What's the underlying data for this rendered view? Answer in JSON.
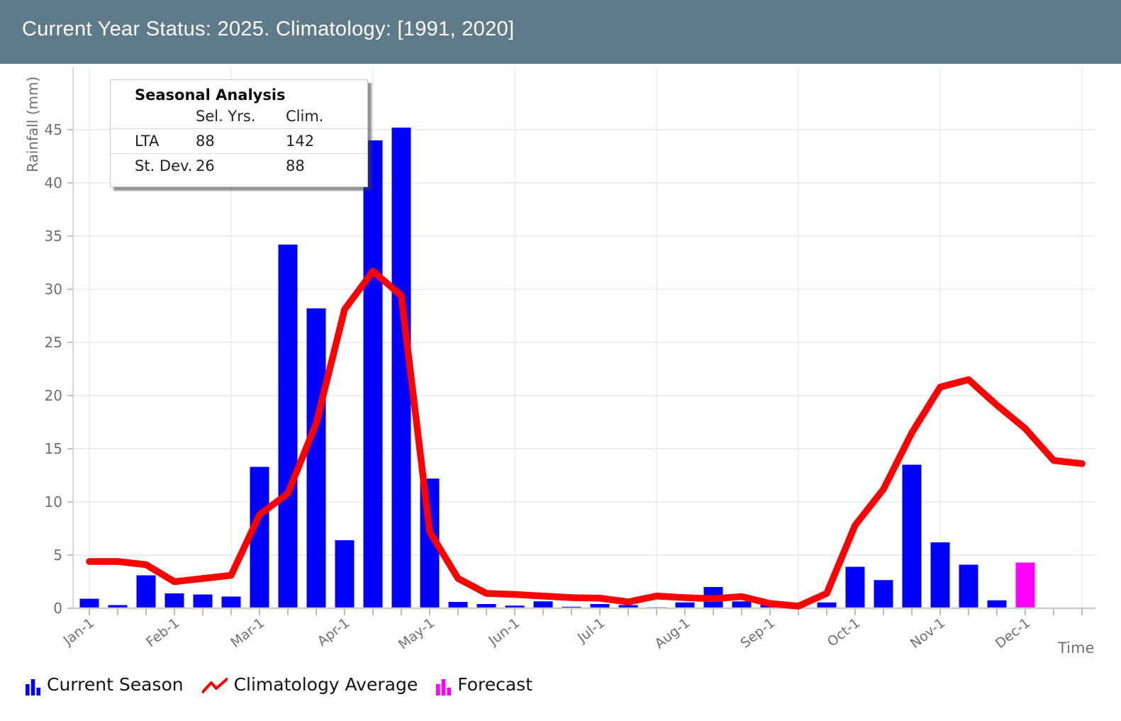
{
  "header": {
    "title": "Current Year Status: 2025. Climatology: [1991, 2020]"
  },
  "tooltip": {
    "title": "Seasonal Analysis",
    "col_headers": [
      "Sel. Yrs.",
      "Clim."
    ],
    "rows": [
      {
        "label": "LTA",
        "sel_yrs": "88",
        "clim": "142"
      },
      {
        "label": "St. Dev.",
        "sel_yrs": "26",
        "clim": "88"
      }
    ]
  },
  "axes": {
    "ylabel": "Rainfall (mm)",
    "xlabel": "Time"
  },
  "legend": {
    "current_season": "Current Season",
    "climatology_average": "Climatology Average",
    "forecast": "Forecast"
  },
  "colors": {
    "header_bg": "#5f7a88",
    "bar": "#0000ff",
    "forecast": "#ff00ff",
    "line": "#ff0000",
    "grid": "#e8e8e8",
    "spine": "#cdcdcd",
    "tick": "#c2c2c2",
    "tick_label": "#6f6f6f"
  },
  "chart_data": {
    "type": "bar",
    "title": "Current Year Status: 2025. Climatology: [1991, 2020]",
    "xlabel": "Time",
    "ylabel": "Rainfall (mm)",
    "ylim": [
      0,
      50
    ],
    "yticks": [
      0,
      5,
      10,
      15,
      20,
      25,
      30,
      35,
      40,
      45
    ],
    "grid": true,
    "legend_position": "bottom",
    "month_tick_labels": [
      "Jan-1",
      "Feb-1",
      "Mar-1",
      "Apr-1",
      "May-1",
      "Jun-1",
      "Jul-1",
      "Aug-1",
      "Sep-1",
      "Oct-1",
      "Nov-1",
      "Dec-1"
    ],
    "categories": [
      "Jan-1",
      "Jan-11",
      "Jan-21",
      "Feb-1",
      "Feb-11",
      "Feb-21",
      "Mar-1",
      "Mar-11",
      "Mar-21",
      "Apr-1",
      "Apr-11",
      "Apr-21",
      "May-1",
      "May-11",
      "May-21",
      "Jun-1",
      "Jun-11",
      "Jun-21",
      "Jul-1",
      "Jul-11",
      "Jul-21",
      "Aug-1",
      "Aug-11",
      "Aug-21",
      "Sep-1",
      "Sep-11",
      "Sep-21",
      "Oct-1",
      "Oct-11",
      "Oct-21",
      "Nov-1",
      "Nov-11",
      "Nov-21",
      "Dec-1",
      "Dec-11",
      "Dec-21"
    ],
    "series": [
      {
        "name": "Current Season",
        "type": "bar",
        "color": "#0000ff",
        "values": [
          0.9,
          0.3,
          3.1,
          1.4,
          1.3,
          1.1,
          13.3,
          34.2,
          28.2,
          6.4,
          44.0,
          45.2,
          12.2,
          0.6,
          0.4,
          0.25,
          0.65,
          0.15,
          0.4,
          0.3,
          0.1,
          0.55,
          2.0,
          0.65,
          0.35,
          0,
          0.55,
          3.9,
          2.65,
          13.5,
          6.2,
          4.1,
          0.75,
          0,
          0,
          0
        ]
      },
      {
        "name": "Forecast",
        "type": "bar",
        "color": "#ff00ff",
        "values": [
          0,
          0,
          0,
          0,
          0,
          0,
          0,
          0,
          0,
          0,
          0,
          0,
          0,
          0,
          0,
          0,
          0,
          0,
          0,
          0,
          0,
          0,
          0,
          0,
          0,
          0,
          0,
          0,
          0,
          0,
          0,
          0,
          0,
          4.3,
          0,
          0
        ]
      },
      {
        "name": "Climatology Average",
        "type": "line",
        "color": "#ff0000",
        "values": [
          4.4,
          4.4,
          4.1,
          2.5,
          2.8,
          3.1,
          8.8,
          10.8,
          17.4,
          28.1,
          31.7,
          29.4,
          7.2,
          2.8,
          1.4,
          1.3,
          1.15,
          1.0,
          0.95,
          0.6,
          1.15,
          1.0,
          0.9,
          1.1,
          0.45,
          0.2,
          1.4,
          7.8,
          11.2,
          16.5,
          20.8,
          21.5,
          19.1,
          16.9,
          13.9,
          13.6
        ]
      }
    ]
  }
}
